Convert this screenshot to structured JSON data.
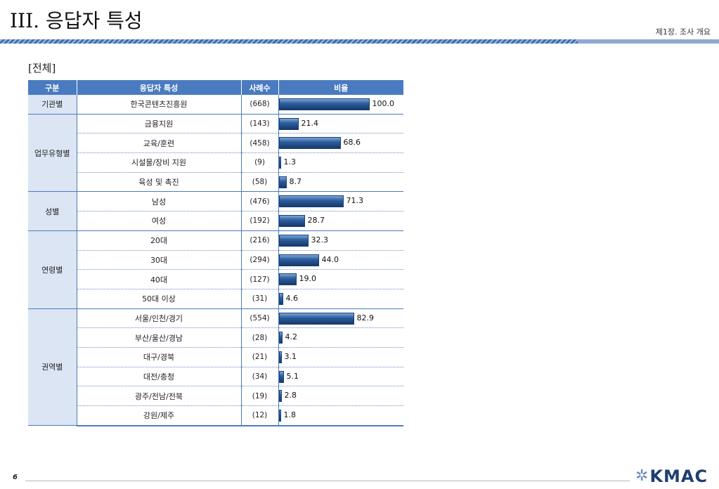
{
  "header": {
    "title": "III. 응답자 특성",
    "chapter": "제1장. 조사 개요"
  },
  "subtitle": "[전체]",
  "table": {
    "headers": [
      "구분",
      "응답자 특성",
      "사례수",
      "비율"
    ],
    "groups": [
      {
        "label": "기관별",
        "rows": [
          {
            "name": "한국콘텐츠진흥원",
            "n": "(668)",
            "pct": 100.0,
            "pct_label": "100.0"
          }
        ]
      },
      {
        "label": "업무유형별",
        "rows": [
          {
            "name": "금융지원",
            "n": "(143)",
            "pct": 21.4,
            "pct_label": "21.4"
          },
          {
            "name": "교육/훈련",
            "n": "(458)",
            "pct": 68.6,
            "pct_label": "68.6"
          },
          {
            "name": "시설물/장비 지원",
            "n": "(9)",
            "pct": 1.3,
            "pct_label": "1.3"
          },
          {
            "name": "육성 및 촉진",
            "n": "(58)",
            "pct": 8.7,
            "pct_label": "8.7"
          }
        ]
      },
      {
        "label": "성별",
        "rows": [
          {
            "name": "남성",
            "n": "(476)",
            "pct": 71.3,
            "pct_label": "71.3"
          },
          {
            "name": "여성",
            "n": "(192)",
            "pct": 28.7,
            "pct_label": "28.7"
          }
        ]
      },
      {
        "label": "연령별",
        "rows": [
          {
            "name": "20대",
            "n": "(216)",
            "pct": 32.3,
            "pct_label": "32.3"
          },
          {
            "name": "30대",
            "n": "(294)",
            "pct": 44.0,
            "pct_label": "44.0"
          },
          {
            "name": "40대",
            "n": "(127)",
            "pct": 19.0,
            "pct_label": "19.0"
          },
          {
            "name": "50대 이상",
            "n": "(31)",
            "pct": 4.6,
            "pct_label": "4.6"
          }
        ]
      },
      {
        "label": "권역별",
        "rows": [
          {
            "name": "서울/인천/경기",
            "n": "(554)",
            "pct": 82.9,
            "pct_label": "82.9"
          },
          {
            "name": "부산/울산/경남",
            "n": "(28)",
            "pct": 4.2,
            "pct_label": "4.2"
          },
          {
            "name": "대구/경북",
            "n": "(21)",
            "pct": 3.1,
            "pct_label": "3.1"
          },
          {
            "name": "대전/충청",
            "n": "(34)",
            "pct": 5.1,
            "pct_label": "5.1"
          },
          {
            "name": "광주/전남/전북",
            "n": "(19)",
            "pct": 2.8,
            "pct_label": "2.8"
          },
          {
            "name": "강원/제주",
            "n": "(12)",
            "pct": 1.8,
            "pct_label": "1.8"
          }
        ]
      }
    ]
  },
  "chart_data": {
    "type": "bar",
    "categories": [
      "한국콘텐츠진흥원",
      "금융지원",
      "교육/훈련",
      "시설물/장비 지원",
      "육성 및 촉진",
      "남성",
      "여성",
      "20대",
      "30대",
      "40대",
      "50대 이상",
      "서울/인천/경기",
      "부산/울산/경남",
      "대구/경북",
      "대전/충청",
      "광주/전남/전북",
      "강원/제주"
    ],
    "values": [
      100.0,
      21.4,
      68.6,
      1.3,
      8.7,
      71.3,
      28.7,
      32.3,
      44.0,
      19.0,
      4.6,
      82.9,
      4.2,
      3.1,
      5.1,
      2.8,
      1.8
    ],
    "title": "",
    "xlabel": "",
    "ylabel": "비율",
    "ylim": [
      0,
      100
    ]
  },
  "footer": {
    "page": "6",
    "logo_text": "KMAC"
  },
  "colors": {
    "accent": "#4a7bc0",
    "group_bg": "#dbe5f4",
    "bar_dark": "#16396b"
  }
}
